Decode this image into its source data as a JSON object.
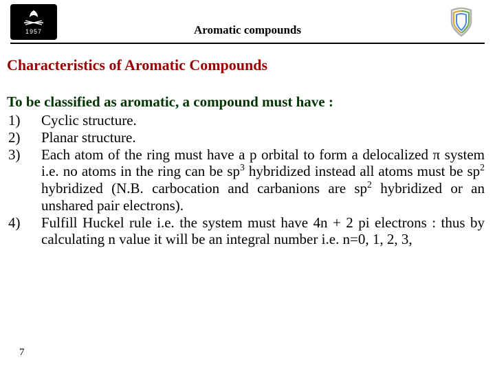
{
  "header": {
    "title": "Aromatic compounds",
    "logoLeft": {
      "year": "1957",
      "bg": "#000000",
      "fg": "#ffffff"
    },
    "logoRight": {
      "strokes": [
        "#b0b0b0",
        "#d4a83a",
        "#6aa84f",
        "#4a86e8"
      ]
    }
  },
  "section": {
    "title": "Characteristics of Aromatic Compounds",
    "intro": "To be classified as aromatic, a compound must have :",
    "items": [
      {
        "num": "1)",
        "html": "Cyclic structure."
      },
      {
        "num": "2)",
        "html": "Planar structure."
      },
      {
        "num": "3)",
        "html": "Each atom of the ring must have a p orbital to form a delocalized &pi; system i.e. no atoms in the ring can be sp<sup>3</sup> hybridized instead all atoms must be sp<sup>2</sup> hybridized (N.B. carbocation and carbanions are sp<sup>2</sup> hybridized or an unshared pair electrons)."
      },
      {
        "num": "4)",
        "html": "Fulfill Huckel rule i.e. the system must have 4n + 2 pi electrons : thus by calculating n value it will be an integral number i.e. n=0, 1, 2, 3,"
      }
    ]
  },
  "page": "7",
  "colors": {
    "sectionTitle": "#990000",
    "intro": "#003300",
    "body": "#000000",
    "rule": "#000000",
    "background": "#ffffff"
  }
}
